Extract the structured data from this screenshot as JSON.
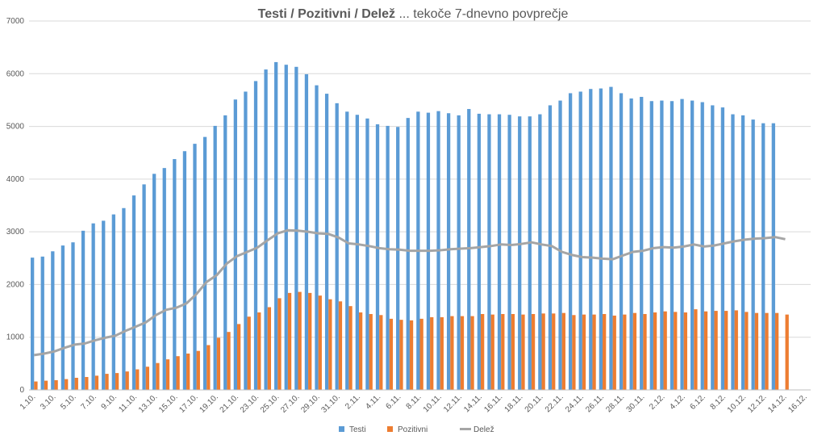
{
  "chart_data": {
    "type": "bar+line",
    "title_bold": "Testi / Pozitivni / Delež",
    "title_rest": " ... tekoče 7-dnevno povprečje",
    "xlabel": "",
    "ylabel": "",
    "ylim": [
      0,
      7000
    ],
    "yticks": [
      0,
      1000,
      2000,
      3000,
      4000,
      5000,
      6000,
      7000
    ],
    "grid": true,
    "legend_position": "bottom-center",
    "categories": [
      "1.10.",
      "2.10.",
      "3.10.",
      "4.10.",
      "5.10.",
      "6.10.",
      "7.10.",
      "8.10.",
      "9.10.",
      "10.10.",
      "11.10.",
      "12.10.",
      "13.10.",
      "14.10.",
      "15.10.",
      "16.10.",
      "17.10.",
      "18.10.",
      "19.10.",
      "20.10.",
      "21.10.",
      "22.10.",
      "23.10.",
      "24.10.",
      "25.10.",
      "26.10.",
      "27.10.",
      "28.10.",
      "29.10.",
      "30.10.",
      "31.10.",
      "1.11.",
      "2.11.",
      "3.11.",
      "4.11.",
      "5.11.",
      "6.11.",
      "7.11.",
      "8.11.",
      "9.11.",
      "10.11.",
      "11.11.",
      "12.11.",
      "13.11.",
      "14.11.",
      "15.11.",
      "16.11.",
      "17.11.",
      "18.11.",
      "19.11.",
      "20.11.",
      "21.11.",
      "22.11.",
      "23.11.",
      "24.11.",
      "25.11.",
      "26.11.",
      "27.11.",
      "28.11.",
      "29.11.",
      "30.11.",
      "1.12.",
      "2.12.",
      "3.12.",
      "4.12.",
      "5.12.",
      "6.12.",
      "7.12.",
      "8.12.",
      "9.12.",
      "10.12.",
      "11.12.",
      "12.12.",
      "13.12.",
      "14.12.",
      "15.12.",
      "16.12."
    ],
    "tick_labels": [
      "1.10.",
      "3.10.",
      "5.10.",
      "7.10.",
      "9.10.",
      "11.10.",
      "13.10.",
      "15.10.",
      "17.10.",
      "19.10.",
      "21.10.",
      "23.10.",
      "25.10.",
      "27.10.",
      "29.10.",
      "31.10.",
      "2.11.",
      "4.11.",
      "6.11.",
      "8.11.",
      "10.11.",
      "12.11.",
      "14.11.",
      "16.11.",
      "18.11.",
      "20.11.",
      "22.11.",
      "24.11.",
      "26.11.",
      "28.11.",
      "30.11.",
      "2.12.",
      "4.12.",
      "6.12.",
      "8.12.",
      "10.12.",
      "12.12.",
      "14.12.",
      "16.12."
    ],
    "series": [
      {
        "name": "Testi",
        "kind": "bar",
        "color": "#5b9bd5",
        "values": [
          2510,
          2530,
          2630,
          2740,
          2800,
          3020,
          3160,
          3210,
          3330,
          3450,
          3690,
          3900,
          4100,
          4210,
          4380,
          4530,
          4670,
          4800,
          5010,
          5210,
          5510,
          5660,
          5860,
          6080,
          6220,
          6170,
          6130,
          5990,
          5780,
          5620,
          5440,
          5280,
          5220,
          5150,
          5040,
          5010,
          4990,
          5160,
          5280,
          5260,
          5290,
          5250,
          5210,
          5330,
          5240,
          5230,
          5230,
          5220,
          5190,
          5190,
          5230,
          5400,
          5490,
          5630,
          5660,
          5710,
          5720,
          5750,
          5630,
          5530,
          5560,
          5480,
          5490,
          5480,
          5520,
          5490,
          5460,
          5400,
          5360,
          5230,
          5210,
          5130,
          5060,
          5060,
          null,
          null,
          null
        ]
      },
      {
        "name": "Pozitivni",
        "kind": "bar",
        "color": "#ed7d31",
        "values": [
          160,
          175,
          185,
          205,
          230,
          245,
          270,
          305,
          320,
          350,
          390,
          440,
          510,
          580,
          640,
          690,
          740,
          850,
          990,
          1100,
          1250,
          1390,
          1470,
          1570,
          1740,
          1840,
          1860,
          1840,
          1790,
          1720,
          1680,
          1590,
          1470,
          1440,
          1420,
          1350,
          1330,
          1320,
          1350,
          1380,
          1380,
          1400,
          1400,
          1400,
          1440,
          1430,
          1440,
          1440,
          1430,
          1440,
          1450,
          1450,
          1460,
          1420,
          1430,
          1430,
          1440,
          1410,
          1430,
          1460,
          1440,
          1470,
          1490,
          1480,
          1470,
          1530,
          1490,
          1500,
          1500,
          1510,
          1480,
          1460,
          1460,
          1460,
          1430,
          null,
          null
        ]
      },
      {
        "name": "Delež",
        "kind": "line",
        "color": "#a5a5a5",
        "values": [
          660,
          690,
          730,
          800,
          860,
          880,
          940,
          990,
          1030,
          1120,
          1200,
          1280,
          1420,
          1520,
          1560,
          1640,
          1820,
          2050,
          2180,
          2400,
          2540,
          2620,
          2700,
          2840,
          2970,
          3030,
          3020,
          3000,
          2970,
          2960,
          2890,
          2780,
          2760,
          2730,
          2690,
          2670,
          2660,
          2640,
          2640,
          2640,
          2650,
          2670,
          2680,
          2690,
          2710,
          2730,
          2760,
          2750,
          2770,
          2800,
          2760,
          2730,
          2620,
          2560,
          2520,
          2510,
          2490,
          2480,
          2550,
          2620,
          2640,
          2690,
          2710,
          2700,
          2720,
          2760,
          2720,
          2740,
          2780,
          2820,
          2850,
          2870,
          2880,
          2900,
          2860,
          null,
          null
        ]
      }
    ]
  }
}
